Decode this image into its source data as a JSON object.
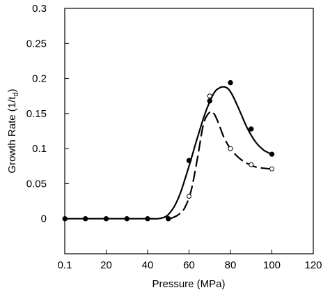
{
  "chart_data": {
    "type": "scatter",
    "title": "",
    "xlabel": "Pressure (MPa)",
    "ylabel_main": "Growth Rate (1/t",
    "ylabel_sub": "d",
    "ylabel_close": ")",
    "xlim": [
      0,
      120
    ],
    "ylim": [
      -0.05,
      0.3
    ],
    "grid": false,
    "x_ticks": [
      {
        "value": 0,
        "label": "0.1"
      },
      {
        "value": 20,
        "label": "20"
      },
      {
        "value": 40,
        "label": "40"
      },
      {
        "value": 60,
        "label": "60"
      },
      {
        "value": 80,
        "label": "80"
      },
      {
        "value": 100,
        "label": "100"
      },
      {
        "value": 120,
        "label": "120"
      }
    ],
    "y_ticks": [
      {
        "value": 0,
        "label": "0"
      },
      {
        "value": 0.05,
        "label": "0.05"
      },
      {
        "value": 0.1,
        "label": "0.1"
      },
      {
        "value": 0.15,
        "label": "0.15"
      },
      {
        "value": 0.2,
        "label": "0.2"
      },
      {
        "value": 0.25,
        "label": "0.25"
      },
      {
        "value": 0.3,
        "label": "0.3"
      }
    ],
    "series": [
      {
        "marker": "filled-circle",
        "x": [
          0.1,
          10,
          20,
          30,
          40,
          50,
          60,
          70,
          80,
          90,
          100
        ],
        "y": [
          0,
          0,
          0,
          0,
          0,
          0,
          0.083,
          0.168,
          0.194,
          0.128,
          0.092
        ]
      },
      {
        "marker": "open-circle",
        "x": [
          60,
          70,
          80,
          90,
          100
        ],
        "y": [
          0.032,
          0.175,
          0.1,
          0.077,
          0.071
        ]
      }
    ],
    "curves": [
      {
        "style": "solid",
        "x": [
          0,
          10,
          20,
          30,
          40,
          45,
          48,
          50,
          53,
          56,
          60,
          64,
          68,
          72,
          75,
          77,
          79,
          81,
          84,
          88,
          92,
          96,
          100
        ],
        "y": [
          0,
          0,
          0,
          0,
          0,
          0,
          0.002,
          0.006,
          0.018,
          0.038,
          0.075,
          0.115,
          0.152,
          0.179,
          0.187,
          0.188,
          0.185,
          0.176,
          0.157,
          0.13,
          0.11,
          0.098,
          0.092
        ]
      },
      {
        "style": "dashed",
        "x": [
          51,
          55,
          58,
          61,
          64,
          67,
          70,
          72,
          74,
          77,
          80,
          84,
          88,
          92,
          96,
          100
        ],
        "y": [
          0,
          0.006,
          0.016,
          0.04,
          0.085,
          0.135,
          0.152,
          0.15,
          0.138,
          0.115,
          0.1,
          0.087,
          0.079,
          0.074,
          0.072,
          0.071
        ]
      }
    ]
  }
}
